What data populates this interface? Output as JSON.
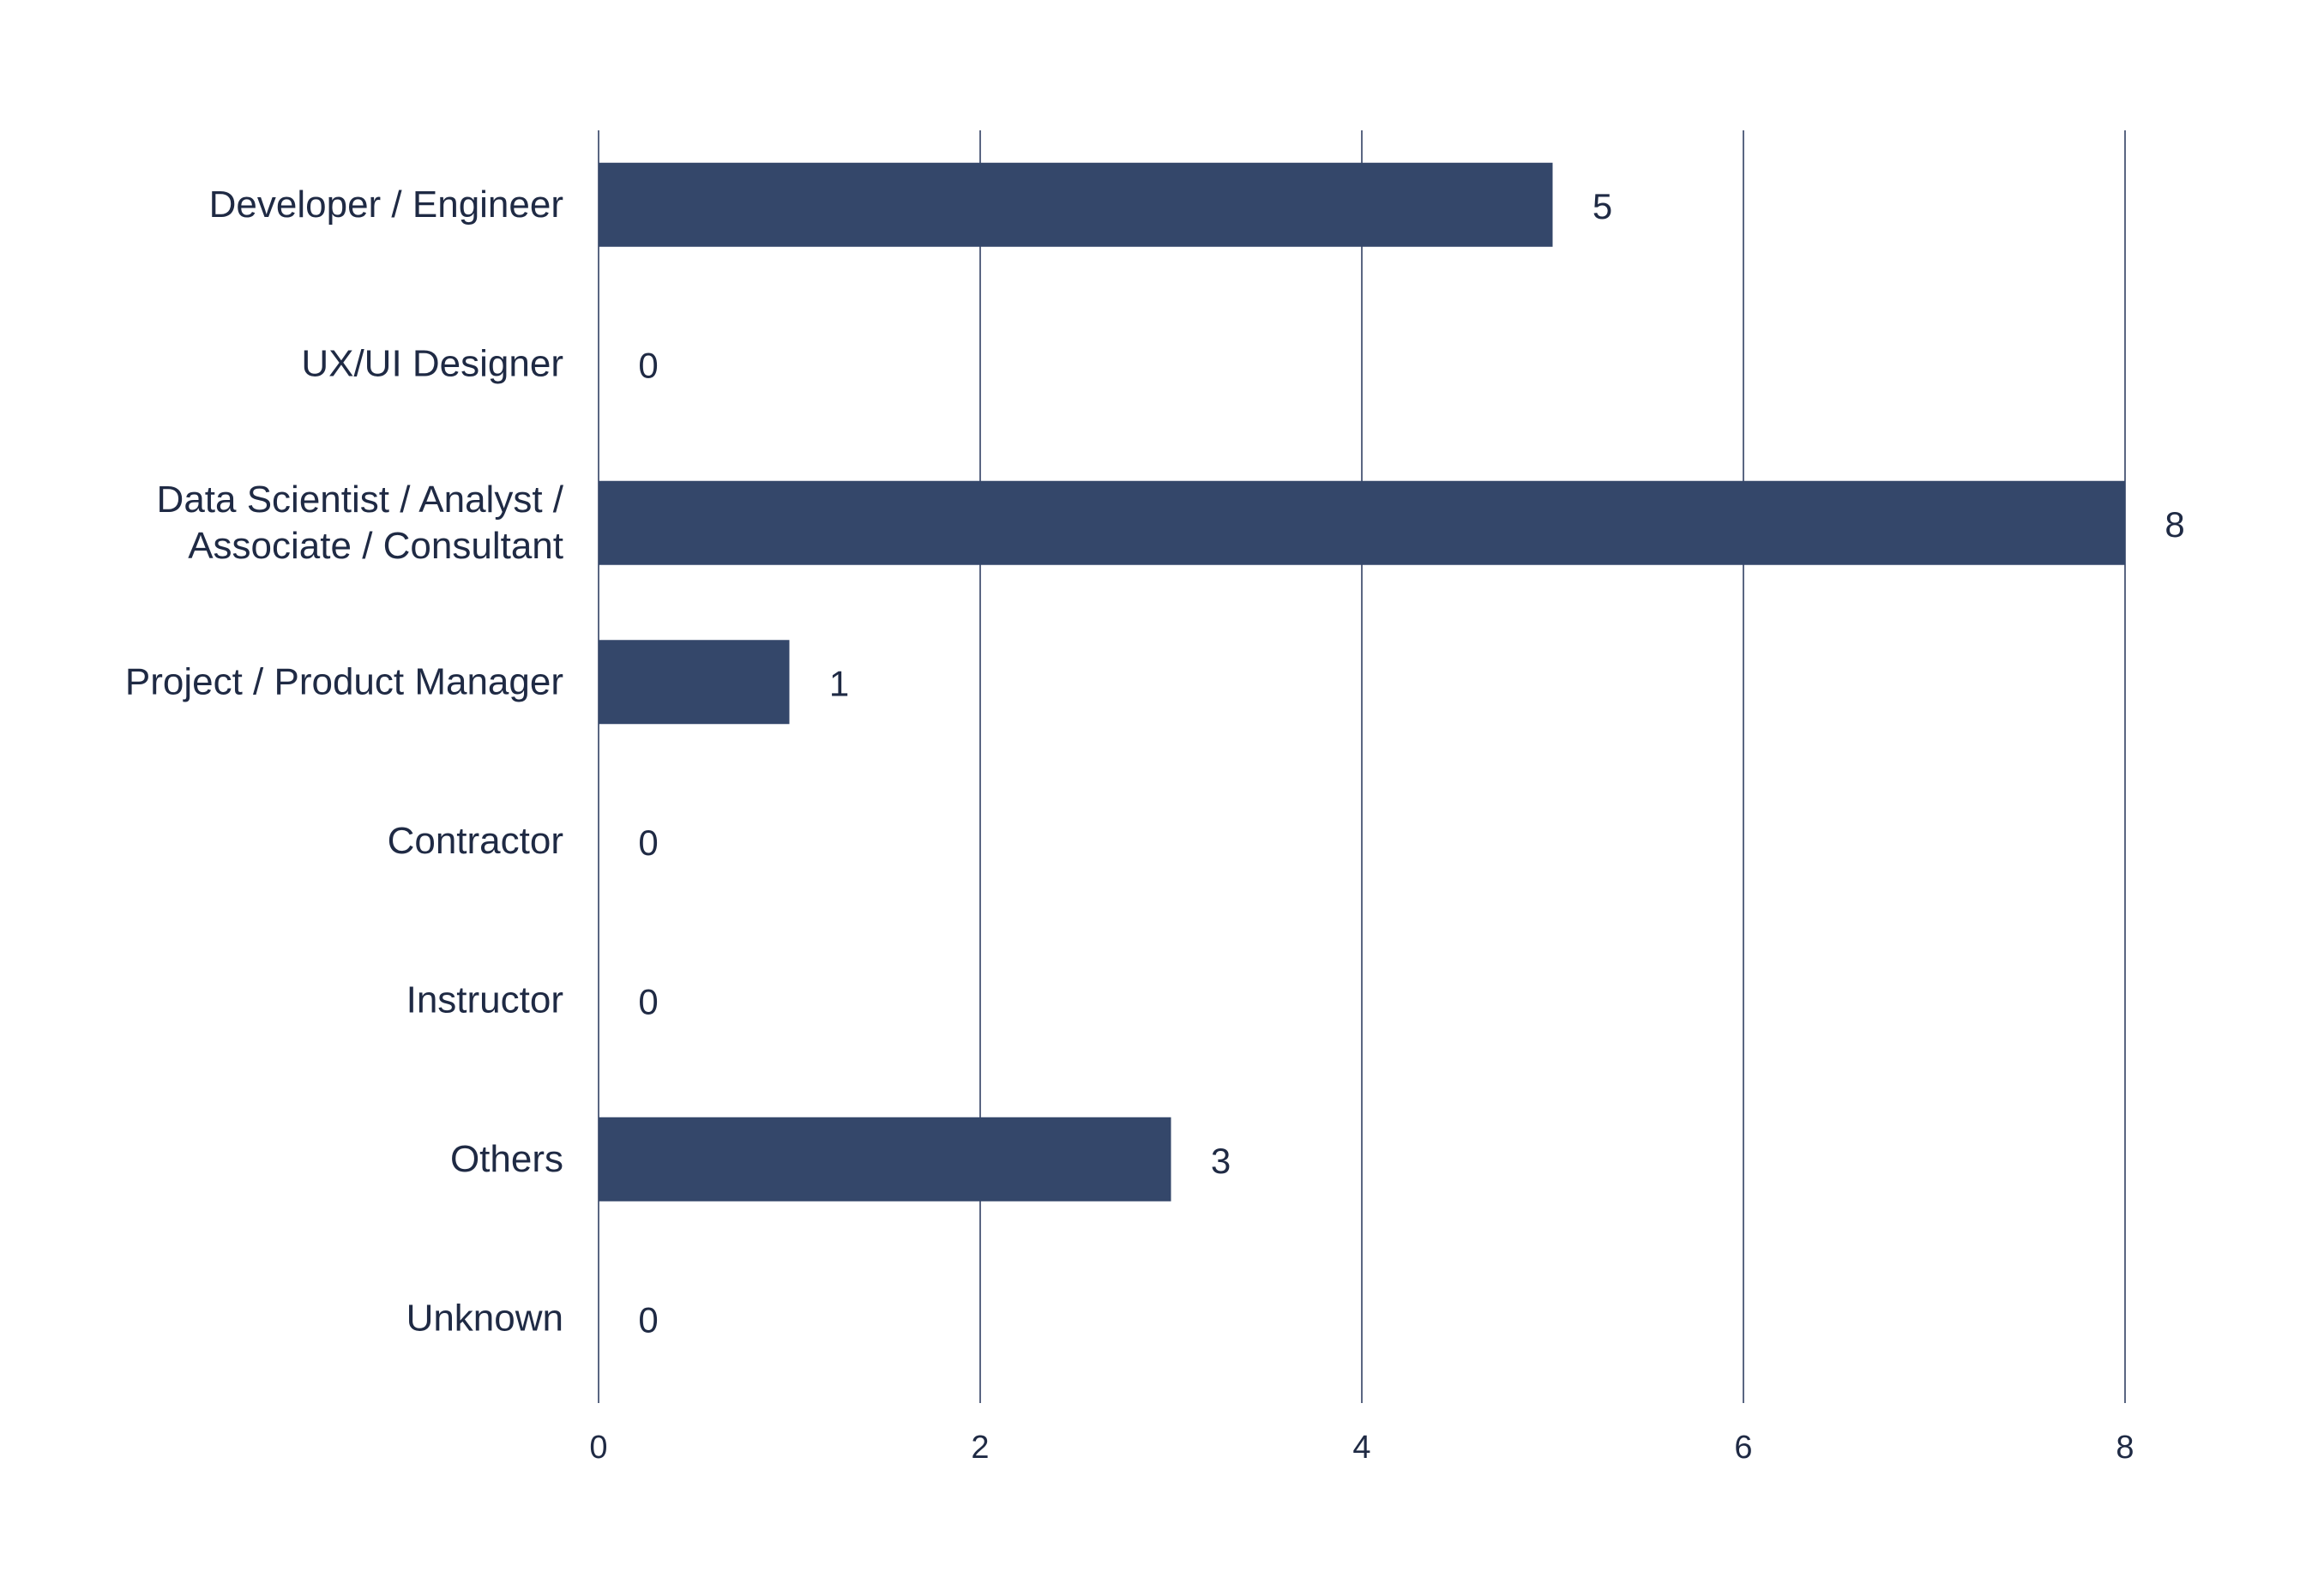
{
  "chart_data": {
    "type": "bar",
    "orientation": "horizontal",
    "categories": [
      "Developer / Engineer",
      "UX/UI Designer",
      "Data Scientist / Analyst / Associate / Consultant",
      "Project / Product Manager",
      "Contractor",
      "Instructor",
      "Others",
      "Unknown"
    ],
    "category_lines": [
      [
        "Developer / Engineer"
      ],
      [
        "UX/UI Designer"
      ],
      [
        "Data Scientist / Analyst /",
        "Associate / Consultant"
      ],
      [
        "Project / Product Manager"
      ],
      [
        "Contractor"
      ],
      [
        "Instructor"
      ],
      [
        "Others"
      ],
      [
        "Unknown"
      ]
    ],
    "values": [
      5,
      0,
      8,
      1,
      0,
      0,
      3,
      0
    ],
    "data_labels": [
      "5",
      "0",
      "8",
      "1",
      "0",
      "0",
      "3",
      "0"
    ],
    "xticks": [
      "0",
      "2",
      "4",
      "6",
      "8"
    ],
    "xlim": [
      0,
      8
    ],
    "grid": "vertical",
    "title": "",
    "xlabel": "",
    "ylabel": "",
    "colors": {
      "bar": "#34476a",
      "grid": "#5a6682",
      "text": "#1f2a44"
    }
  }
}
